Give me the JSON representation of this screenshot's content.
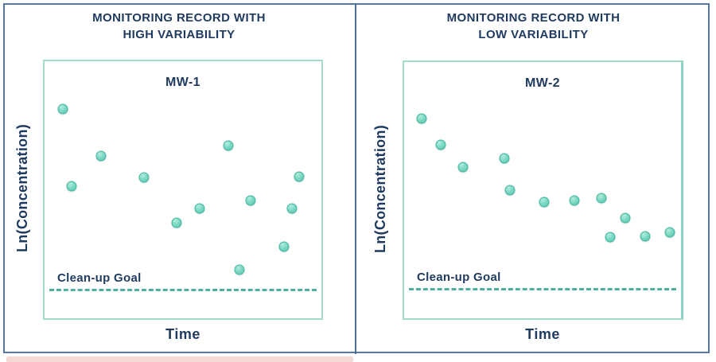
{
  "figure": {
    "background": "#ffffff",
    "frame_border_color": "#56789e",
    "divider_color": "#4e6f94",
    "plot_border_color": "#a5dbcd",
    "text_color": "#1f3a5f",
    "dot_fill_color": "#7cd9c3",
    "dot_edge_color": "#44b3a0",
    "goal_line_color": "#4fb0a0",
    "bottom_strip_color": "#f3dad5"
  },
  "panels": [
    {
      "title1": "MONITORING RECORD WITH",
      "title2": "HIGH VARIABILITY",
      "well": "MW-1",
      "ylabel": "Ln(Concentration)",
      "xlabel": "Time",
      "goal": "Clean-up Goal"
    },
    {
      "title1": "MONITORING RECORD WITH",
      "title2": "LOW VARIABILITY",
      "well": "MW-2",
      "ylabel": "Ln(Concentration)",
      "xlabel": "Time",
      "goal": "Clean-up Goal"
    }
  ],
  "chart_data": [
    {
      "type": "scatter",
      "figure_title": "MONITORING RECORD WITH HIGH VARIABILITY",
      "title": "MW-1",
      "xlabel": "Time",
      "ylabel": "Ln(Concentration)",
      "axis_note": "Conceptual axes with no numeric ticks; point coordinates are fractions of the plot area (x: 0=earliest time, 1=latest; y: 0=bottom, 1=top of Ln(Concentration) axis)",
      "xlim": [
        0,
        1
      ],
      "ylim": [
        0,
        1
      ],
      "grid": false,
      "legend": "none",
      "cleanup_goal": {
        "label": "Clean-up Goal",
        "y": 0.116,
        "line_style": "dashed"
      },
      "points": [
        [
          0.065,
          0.813
        ],
        [
          0.097,
          0.514
        ],
        [
          0.205,
          0.633
        ],
        [
          0.358,
          0.547
        ],
        [
          0.477,
          0.37
        ],
        [
          0.56,
          0.428
        ],
        [
          0.665,
          0.673
        ],
        [
          0.705,
          0.19
        ],
        [
          0.744,
          0.459
        ],
        [
          0.864,
          0.278
        ],
        [
          0.895,
          0.428
        ],
        [
          0.92,
          0.55
        ]
      ]
    },
    {
      "type": "scatter",
      "figure_title": "MONITORING RECORD WITH LOW VARIABILITY",
      "title": "MW-2",
      "xlabel": "Time",
      "ylabel": "Ln(Concentration)",
      "axis_note": "Conceptual axes with no numeric ticks; point coordinates are fractions of the plot area (x: 0=earliest time, 1=latest; y: 0=bottom, 1=top of Ln(Concentration) axis)",
      "xlim": [
        0,
        1
      ],
      "ylim": [
        0,
        1
      ],
      "grid": false,
      "legend": "none",
      "cleanup_goal": {
        "label": "Clean-up Goal",
        "y": 0.117,
        "line_style": "dashed"
      },
      "points": [
        [
          0.063,
          0.781
        ],
        [
          0.131,
          0.676
        ],
        [
          0.213,
          0.59
        ],
        [
          0.361,
          0.623
        ],
        [
          0.381,
          0.5
        ],
        [
          0.506,
          0.454
        ],
        [
          0.614,
          0.46
        ],
        [
          0.713,
          0.469
        ],
        [
          0.744,
          0.318
        ],
        [
          0.798,
          0.392
        ],
        [
          0.872,
          0.321
        ],
        [
          0.96,
          0.336
        ]
      ]
    }
  ]
}
